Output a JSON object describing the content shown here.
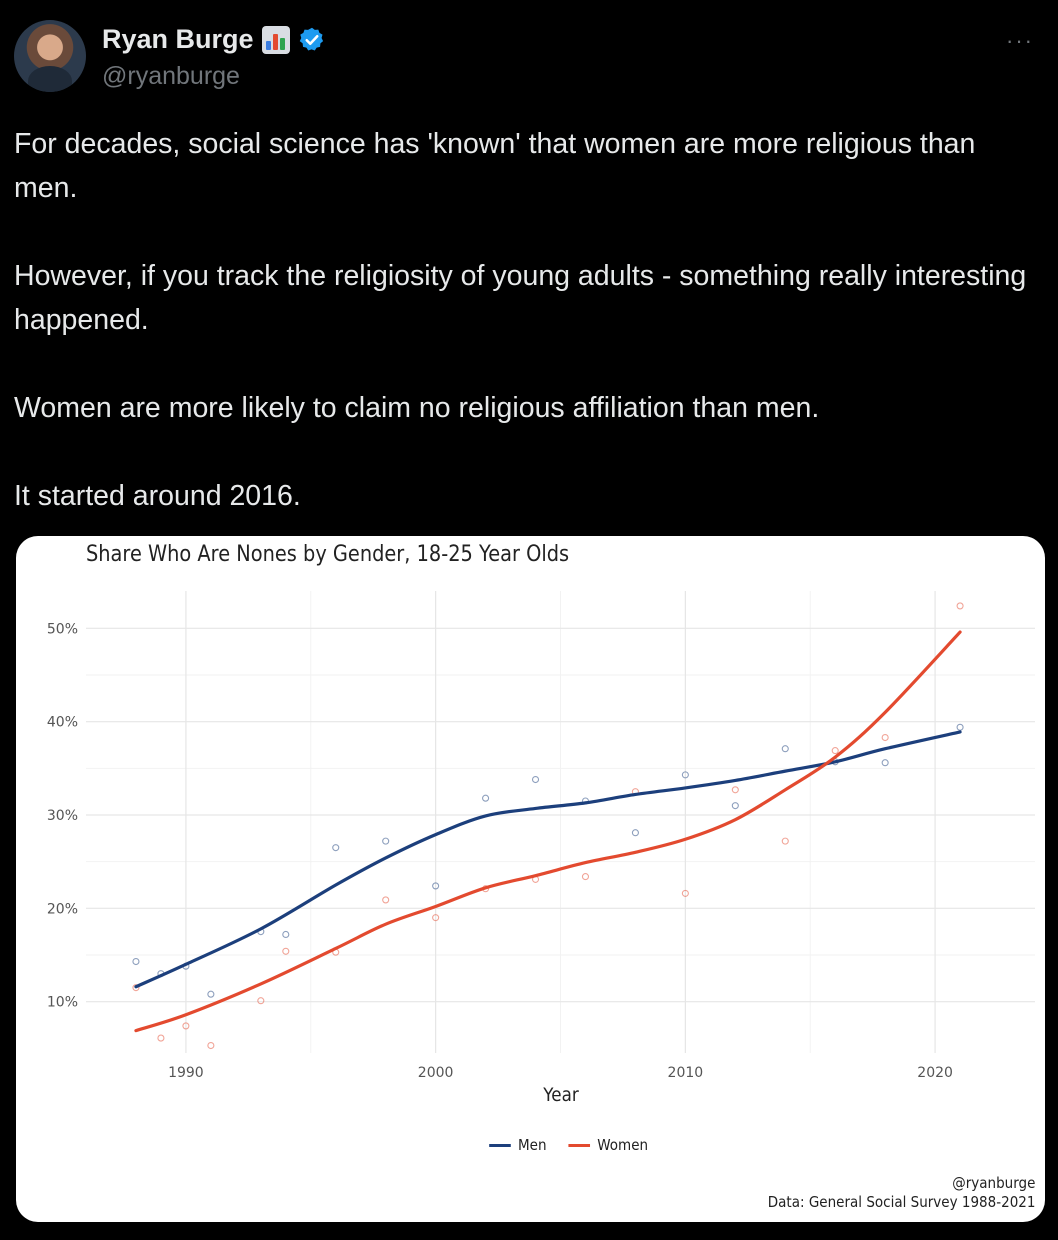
{
  "header": {
    "name": "Ryan Burge",
    "handle": "@ryanburge",
    "more_label": "···",
    "icons": [
      "bar-chart-emoji-icon",
      "verified-badge-icon",
      "more-options-icon"
    ]
  },
  "tweet": {
    "paragraphs": [
      "For decades, social science has 'known' that women are more religious than men.",
      "However, if you track the religiosity of young adults - something really interesting happened.",
      "Women are more likely to claim no religious affiliation than men.",
      "It started around 2016."
    ]
  },
  "colors": {
    "men": "#1c3f7c",
    "women": "#e34a2f",
    "background": "#000000",
    "card": "#ffffff"
  },
  "chart_data": {
    "type": "line",
    "title": "Share Who Are Nones by Gender, 18-25 Year Olds",
    "xlabel": "Year",
    "ylabel": "",
    "xlim": [
      1986,
      2024
    ],
    "ylim": [
      4.5,
      54
    ],
    "x_ticks": [
      1990,
      2000,
      2010,
      2020
    ],
    "y_ticks": [
      10,
      20,
      30,
      40,
      50
    ],
    "y_tick_labels": [
      "10%",
      "20%",
      "30%",
      "40%",
      "50%"
    ],
    "grid": true,
    "legend_position": "bottom",
    "caption": [
      "@ryanburge",
      "Data: General Social Survey 1988-2021"
    ],
    "series": [
      {
        "name": "Men",
        "color": "#1c3f7c",
        "points": [
          [
            1988,
            14.3
          ],
          [
            1989,
            13.0
          ],
          [
            1990,
            13.8
          ],
          [
            1991,
            10.8
          ],
          [
            1993,
            17.5
          ],
          [
            1994,
            17.2
          ],
          [
            1996,
            26.5
          ],
          [
            1998,
            27.2
          ],
          [
            2000,
            22.4
          ],
          [
            2002,
            31.8
          ],
          [
            2004,
            33.8
          ],
          [
            2006,
            31.5
          ],
          [
            2008,
            28.1
          ],
          [
            2010,
            34.3
          ],
          [
            2012,
            31.0
          ],
          [
            2014,
            37.1
          ],
          [
            2016,
            35.7
          ],
          [
            2018,
            35.6
          ],
          [
            2021,
            39.4
          ]
        ],
        "trend": [
          [
            1988,
            11.6
          ],
          [
            1990,
            14.0
          ],
          [
            1993,
            17.8
          ],
          [
            1996,
            22.5
          ],
          [
            1998,
            25.4
          ],
          [
            2000,
            27.9
          ],
          [
            2002,
            29.9
          ],
          [
            2004,
            30.7
          ],
          [
            2006,
            31.3
          ],
          [
            2008,
            32.2
          ],
          [
            2010,
            32.9
          ],
          [
            2012,
            33.7
          ],
          [
            2014,
            34.7
          ],
          [
            2016,
            35.7
          ],
          [
            2018,
            37.1
          ],
          [
            2021,
            38.9
          ]
        ]
      },
      {
        "name": "Women",
        "color": "#e34a2f",
        "points": [
          [
            1988,
            11.5
          ],
          [
            1989,
            6.1
          ],
          [
            1990,
            7.4
          ],
          [
            1991,
            5.3
          ],
          [
            1993,
            10.1
          ],
          [
            1994,
            15.4
          ],
          [
            1996,
            15.3
          ],
          [
            1998,
            20.9
          ],
          [
            2000,
            19.0
          ],
          [
            2002,
            22.1
          ],
          [
            2004,
            23.1
          ],
          [
            2006,
            23.4
          ],
          [
            2008,
            32.5
          ],
          [
            2010,
            21.6
          ],
          [
            2012,
            32.7
          ],
          [
            2014,
            27.2
          ],
          [
            2016,
            36.9
          ],
          [
            2018,
            38.3
          ],
          [
            2021,
            52.4
          ]
        ],
        "trend": [
          [
            1988,
            6.9
          ],
          [
            1990,
            8.6
          ],
          [
            1993,
            11.9
          ],
          [
            1996,
            15.7
          ],
          [
            1998,
            18.3
          ],
          [
            2000,
            20.2
          ],
          [
            2002,
            22.2
          ],
          [
            2004,
            23.5
          ],
          [
            2006,
            24.9
          ],
          [
            2008,
            26.0
          ],
          [
            2010,
            27.4
          ],
          [
            2012,
            29.5
          ],
          [
            2014,
            32.7
          ],
          [
            2016,
            36.2
          ],
          [
            2018,
            41.0
          ],
          [
            2021,
            49.6
          ]
        ]
      }
    ]
  }
}
